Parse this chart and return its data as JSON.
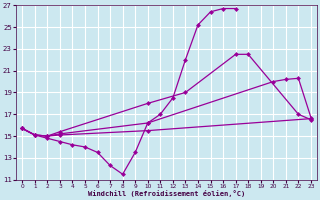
{
  "xlabel": "Windchill (Refroidissement éolien,°C)",
  "bg_color": "#cce8f0",
  "grid_color": "#ffffff",
  "line_color": "#990099",
  "xlim": [
    -0.5,
    23.5
  ],
  "ylim": [
    11,
    27
  ],
  "yticks": [
    11,
    13,
    15,
    17,
    19,
    21,
    23,
    25,
    27
  ],
  "xticks": [
    0,
    1,
    2,
    3,
    4,
    5,
    6,
    7,
    8,
    9,
    10,
    11,
    12,
    13,
    14,
    15,
    16,
    17,
    18,
    19,
    20,
    21,
    22,
    23
  ],
  "line1_x": [
    0,
    1,
    2,
    3,
    4,
    5,
    6,
    7,
    8,
    9,
    10,
    11,
    12,
    13,
    14,
    15,
    16,
    17
  ],
  "line1_y": [
    15.7,
    15.1,
    14.8,
    14.5,
    14.2,
    14.0,
    13.5,
    12.3,
    11.5,
    13.5,
    16.2,
    17.0,
    18.5,
    22.0,
    25.2,
    26.4,
    26.7,
    26.7
  ],
  "line2_x": [
    0,
    1,
    2,
    3,
    10,
    13,
    17,
    18,
    22,
    23
  ],
  "line2_y": [
    15.7,
    15.1,
    15.0,
    15.4,
    18.0,
    19.0,
    22.5,
    22.5,
    17.0,
    16.5
  ],
  "line3_x": [
    0,
    1,
    2,
    3,
    10,
    20,
    21,
    22,
    23
  ],
  "line3_y": [
    15.7,
    15.1,
    15.0,
    15.2,
    16.2,
    20.0,
    20.2,
    20.3,
    16.7
  ],
  "line4_x": [
    0,
    1,
    2,
    3,
    10,
    23
  ],
  "line4_y": [
    15.7,
    15.1,
    15.0,
    15.1,
    15.5,
    16.6
  ]
}
